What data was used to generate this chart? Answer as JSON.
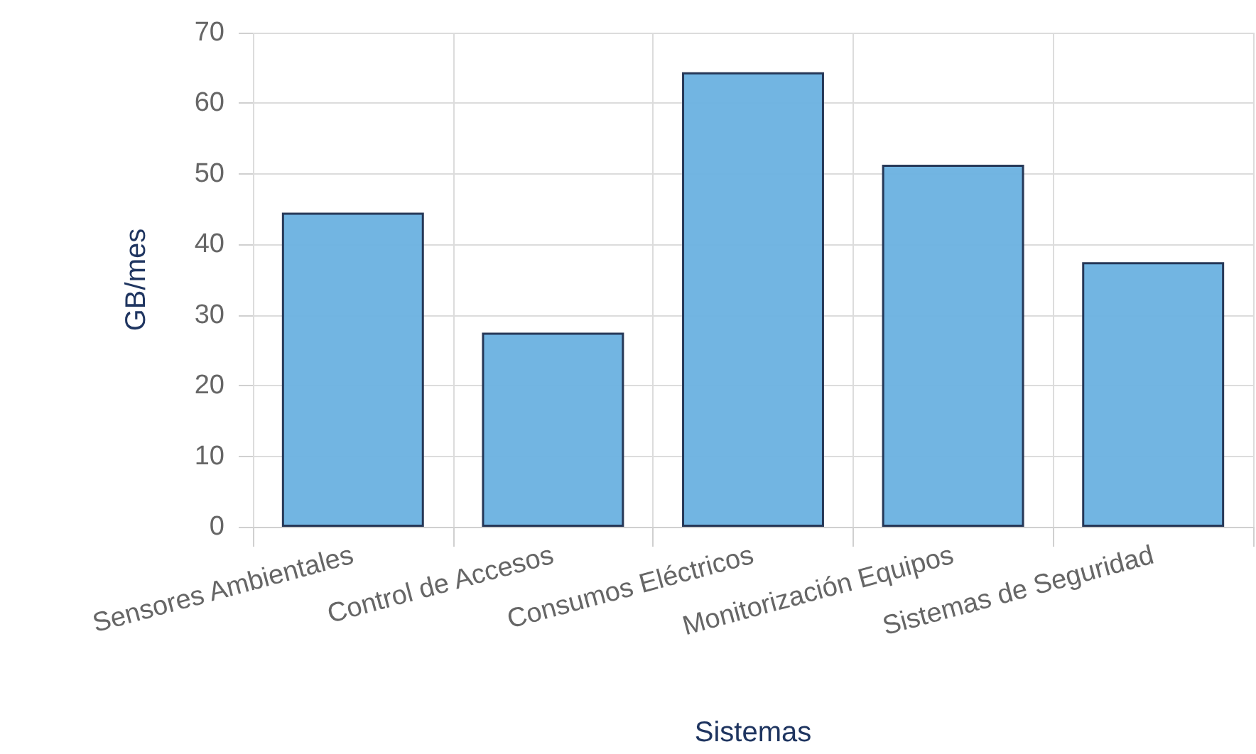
{
  "chart_data": {
    "type": "bar",
    "xlabel": "Sistemas",
    "ylabel": "GB/mes",
    "categories": [
      "Sensores Ambientales",
      "Control de Accesos",
      "Consumos Eléctricos",
      "Monitorización Equipos",
      "Sistemas de Seguridad"
    ],
    "values": [
      44.5,
      27.5,
      64.4,
      51.3,
      37.5
    ],
    "color": "#6ab1e0",
    "ylim": [
      0,
      70
    ],
    "yticks": [
      0,
      10,
      20,
      30,
      40,
      50,
      60,
      70
    ],
    "grid": true
  }
}
